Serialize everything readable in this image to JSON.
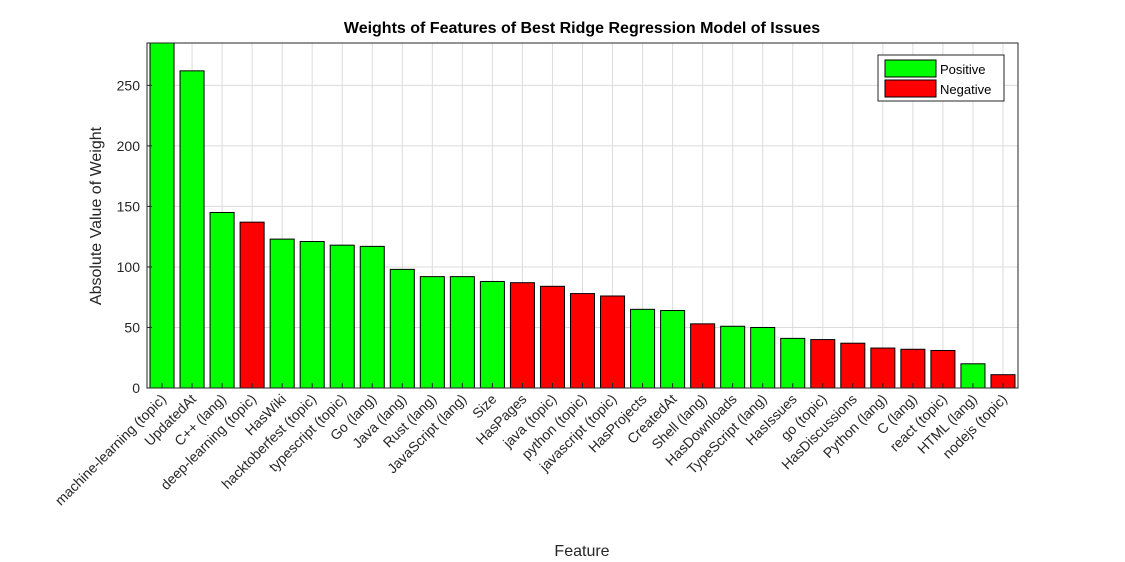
{
  "chart_data": {
    "type": "bar",
    "title": "Weights of Features of Best Ridge Regression Model of Issues",
    "xlabel": "Feature",
    "ylabel": "Absolute Value of Weight",
    "ylim": [
      0,
      285
    ],
    "yticks": [
      0,
      50,
      100,
      150,
      200,
      250
    ],
    "grid": true,
    "legend_position": "top-right",
    "legend": [
      {
        "name": "Positive",
        "color": "#00ff00"
      },
      {
        "name": "Negative",
        "color": "#ff0000"
      }
    ],
    "categories": [
      "machine-learning (topic)",
      "UpdatedAt",
      "C++ (lang)",
      "deep-learning (topic)",
      "HasWiki",
      "hacktoberfest (topic)",
      "typescript (topic)",
      "Go (lang)",
      "Java (lang)",
      "Rust (lang)",
      "JavaScript (lang)",
      "Size",
      "HasPages",
      "java (topic)",
      "python (topic)",
      "javascript (topic)",
      "HasProjects",
      "CreatedAt",
      "Shell (lang)",
      "HasDownloads",
      "TypeScript (lang)",
      "HasIssues",
      "go (topic)",
      "HasDiscussions",
      "Python (lang)",
      "C (lang)",
      "react (topic)",
      "HTML (lang)",
      "nodejs (topic)"
    ],
    "values": [
      285,
      262,
      145,
      137,
      123,
      121,
      118,
      117,
      98,
      92,
      92,
      88,
      87,
      84,
      78,
      76,
      65,
      64,
      53,
      51,
      50,
      41,
      40,
      37,
      33,
      32,
      31,
      20,
      11
    ],
    "sign": [
      "Positive",
      "Positive",
      "Positive",
      "Negative",
      "Positive",
      "Positive",
      "Positive",
      "Positive",
      "Positive",
      "Positive",
      "Positive",
      "Positive",
      "Negative",
      "Negative",
      "Negative",
      "Negative",
      "Positive",
      "Positive",
      "Negative",
      "Positive",
      "Positive",
      "Positive",
      "Negative",
      "Negative",
      "Negative",
      "Negative",
      "Negative",
      "Positive",
      "Negative"
    ]
  }
}
